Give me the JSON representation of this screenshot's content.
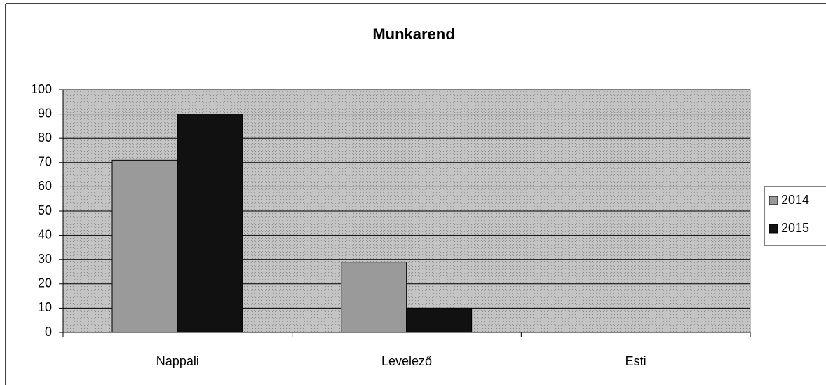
{
  "chart_data": {
    "type": "bar",
    "title": "Munkarend",
    "categories": [
      "Nappali",
      "Levelező",
      "Esti"
    ],
    "series": [
      {
        "name": "2014",
        "color": "#9a9a9a",
        "values": [
          71,
          29,
          0
        ]
      },
      {
        "name": "2015",
        "color": "#111111",
        "values": [
          90,
          10,
          0
        ]
      }
    ],
    "ylim": [
      0,
      100
    ],
    "yticks": [
      0,
      10,
      20,
      30,
      40,
      50,
      60,
      70,
      80,
      90,
      100
    ],
    "grid": true,
    "legend": "right"
  }
}
